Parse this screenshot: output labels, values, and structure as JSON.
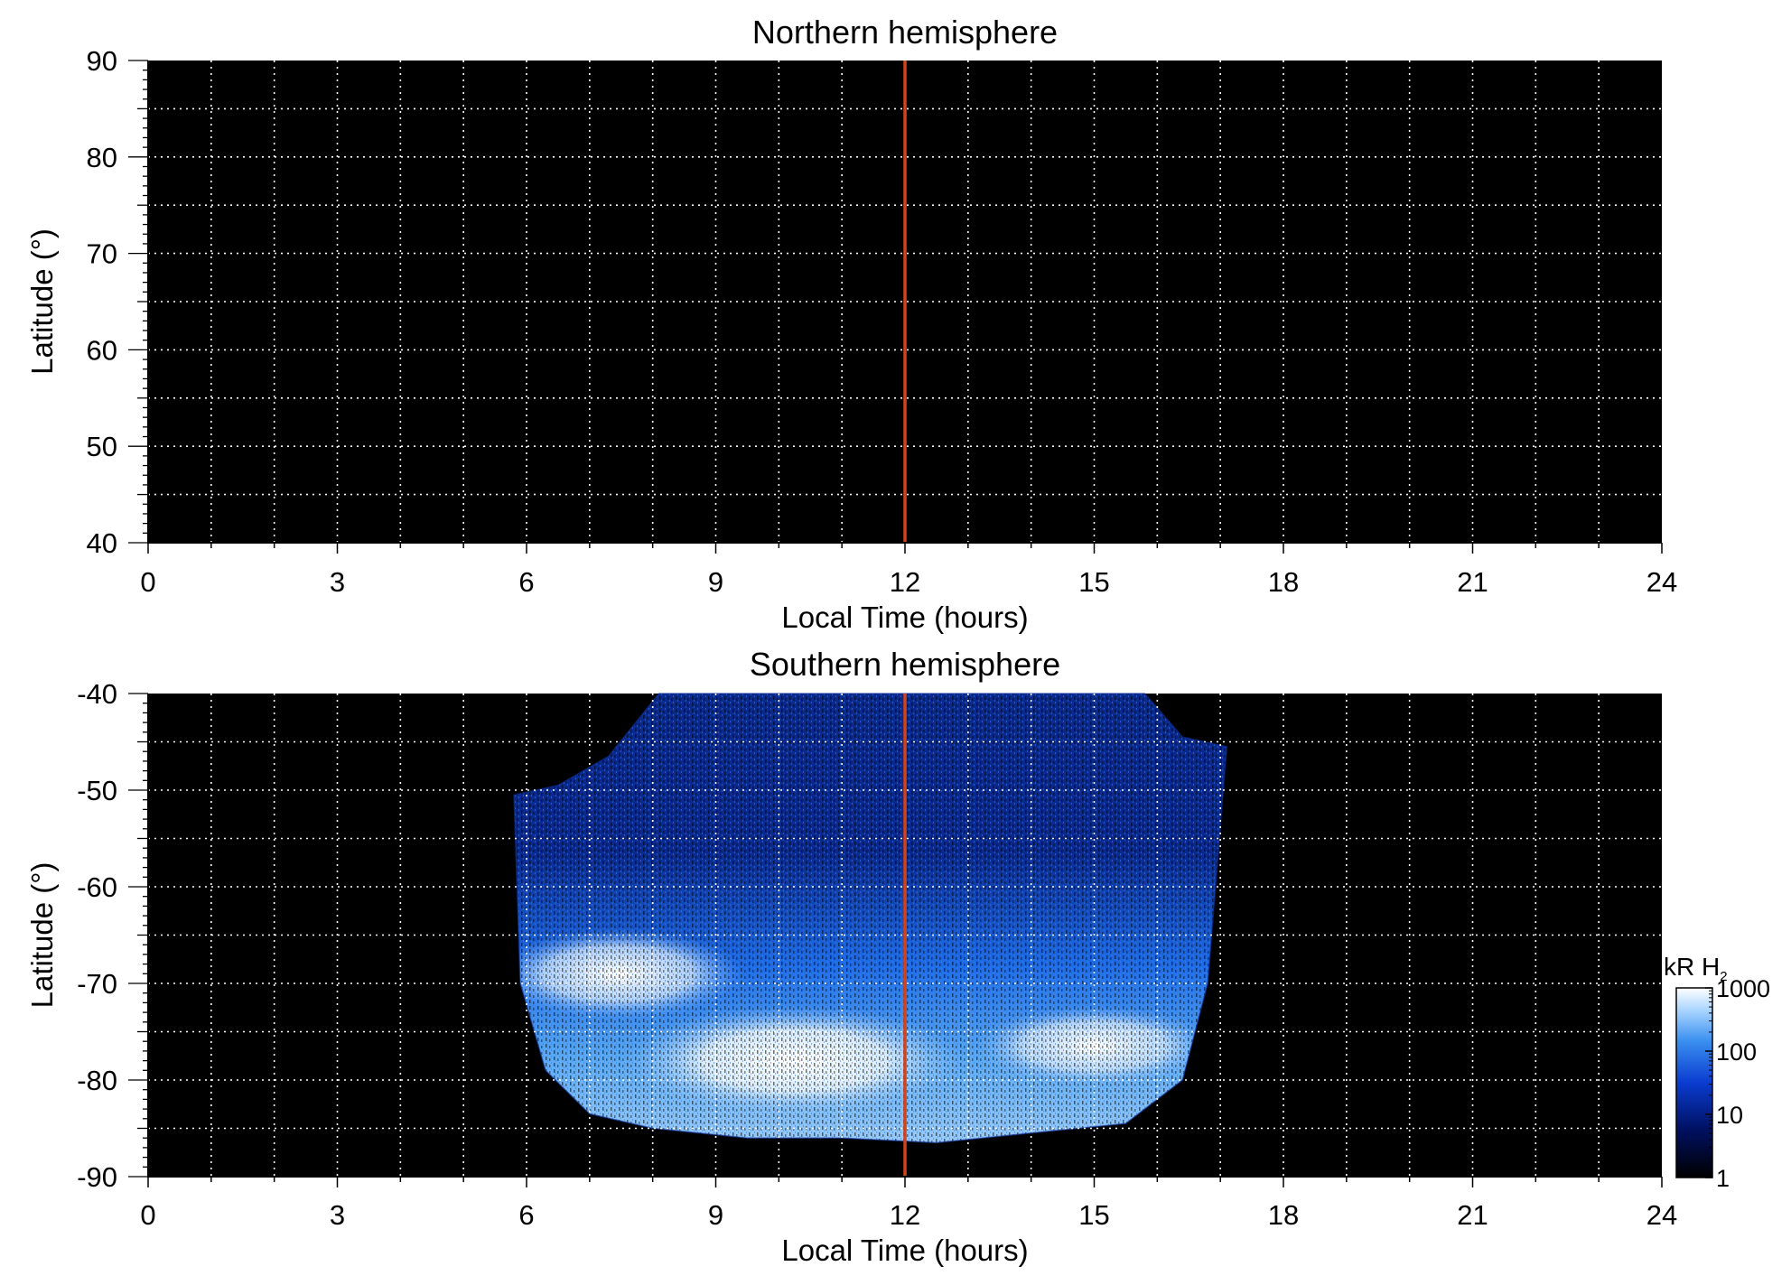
{
  "chart_data": [
    {
      "type": "heatmap",
      "title": "Northern hemisphere",
      "xlabel": "Local Time (hours)",
      "ylabel": "Latitude (°)",
      "xlim": [
        0,
        24
      ],
      "ylim": [
        40,
        90
      ],
      "x_ticks": [
        "0",
        "3",
        "6",
        "9",
        "12",
        "15",
        "18",
        "21",
        "24"
      ],
      "y_ticks": [
        "40",
        "50",
        "60",
        "70",
        "80",
        "90"
      ],
      "grid": true,
      "background": "#000000",
      "marker_line": {
        "x": 12,
        "color": "#d2421c"
      },
      "emission": "none"
    },
    {
      "type": "heatmap",
      "title": "Southern hemisphere",
      "xlabel": "Local Time (hours)",
      "ylabel": "Latitude (°)",
      "xlim": [
        0,
        24
      ],
      "ylim": [
        -90,
        -40
      ],
      "x_ticks": [
        "0",
        "3",
        "6",
        "9",
        "12",
        "15",
        "18",
        "21",
        "24"
      ],
      "y_ticks": [
        "-40",
        "-50",
        "-60",
        "-70",
        "-80",
        "-90"
      ],
      "grid": true,
      "background": "#000000",
      "marker_line": {
        "x": 12,
        "color": "#d2421c"
      },
      "coverage": {
        "top_edge": [
          [
            5.8,
            -50.5
          ],
          [
            6.5,
            -49.5
          ],
          [
            7.3,
            -46.5
          ],
          [
            8.1,
            -40
          ],
          [
            15.8,
            -40
          ],
          [
            16.4,
            -44.5
          ],
          [
            17.1,
            -45.5
          ]
        ],
        "bottom_edge": [
          [
            17.1,
            -45.5
          ],
          [
            16.8,
            -70
          ],
          [
            16.4,
            -80
          ],
          [
            15.5,
            -84.5
          ],
          [
            14.0,
            -85.5
          ],
          [
            12.5,
            -86.5
          ],
          [
            11.0,
            -86.0
          ],
          [
            9.5,
            -86.0
          ],
          [
            8.0,
            -85.0
          ],
          [
            7.0,
            -83.5
          ],
          [
            6.3,
            -79
          ],
          [
            5.9,
            -70
          ],
          [
            5.8,
            -50.5
          ]
        ]
      },
      "auroral_features": [
        {
          "lt": [
            5.9,
            9.0
          ],
          "lat": [
            -66,
            -72
          ],
          "intensity_kR": 300
        },
        {
          "lt": [
            8.0,
            12.5
          ],
          "lat": [
            -74,
            -82
          ],
          "intensity_kR": 1000
        },
        {
          "lt": [
            13.5,
            16.5
          ],
          "lat": [
            -74,
            -79
          ],
          "intensity_kR": 700
        }
      ],
      "colorbar": {
        "label": "kR H",
        "label_subscript": "2",
        "scale": "log",
        "range": [
          1,
          1000
        ],
        "ticks": [
          "1",
          "10",
          "100",
          "1000"
        ],
        "colors": [
          "#000000",
          "#001060",
          "#0a3cd0",
          "#3a8ff0",
          "#a8d4ff",
          "#ffffff"
        ]
      }
    }
  ]
}
